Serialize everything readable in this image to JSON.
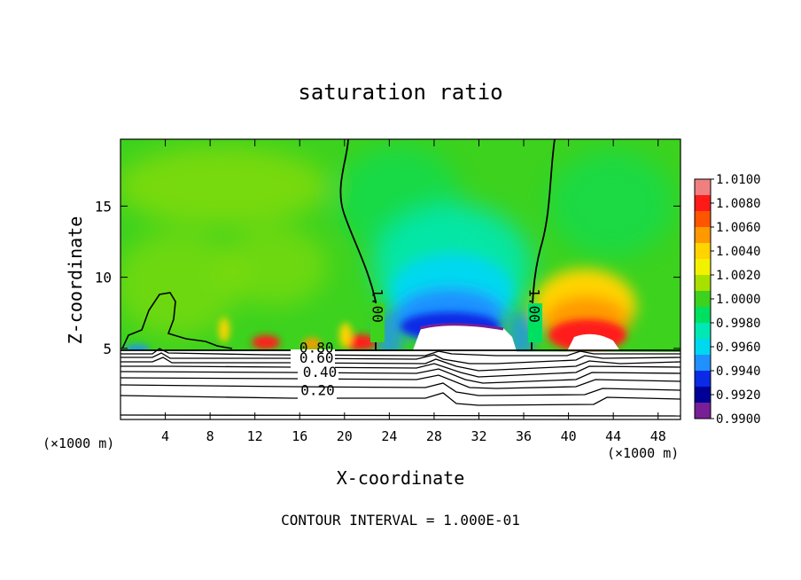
{
  "chart_data": {
    "type": "heatmap",
    "title": "saturation ratio",
    "xlabel": "X-coordinate",
    "ylabel": "Z-coordinate",
    "x_unit_label": "(×1000 m)",
    "y_unit_label": "(×1000 m)",
    "xlim": [
      0,
      50
    ],
    "ylim": [
      0,
      19.7
    ],
    "x_ticks": [
      4,
      8,
      12,
      16,
      20,
      24,
      28,
      32,
      36,
      40,
      44,
      48
    ],
    "x_tick_labels": [
      "4",
      "8",
      "12",
      "16",
      "20",
      "24",
      "28",
      "32",
      "36",
      "40",
      "44",
      "48"
    ],
    "y_ticks": [
      5,
      10,
      15
    ],
    "y_tick_labels": [
      "5",
      "10",
      "15"
    ],
    "footer": "CONTOUR INTERVAL = 1.000E-01",
    "colorbar": {
      "levels": [
        "1.0100",
        "1.0080",
        "1.0060",
        "1.0040",
        "1.0020",
        "1.0000",
        "0.9980",
        "0.9960",
        "0.9940",
        "0.9920",
        "0.9900"
      ],
      "colors": [
        "#f08080",
        "#ff1a1a",
        "#ff5500",
        "#ff9900",
        "#ffd400",
        "#f2f200",
        "#a8e000",
        "#3cd21e",
        "#00e060",
        "#00e8b4",
        "#00d8f0",
        "#1e90ff",
        "#0a2ae6",
        "#000096",
        "#781e96"
      ]
    },
    "contour_labels": [
      {
        "text": "1.00",
        "x": 22.5,
        "y": 8.0,
        "rotate": 90
      },
      {
        "text": "1.00",
        "x": 36.5,
        "y": 8.0,
        "rotate": 90
      },
      {
        "text": "0.80",
        "x": 17.5,
        "y": 4.7,
        "rotate": 0
      },
      {
        "text": "0.60",
        "x": 17.5,
        "y": 4.0,
        "rotate": 0
      },
      {
        "text": "0.40",
        "x": 17.8,
        "y": 3.0,
        "rotate": 0
      },
      {
        "text": "0.20",
        "x": 17.6,
        "y": 1.7,
        "rotate": 0
      }
    ]
  }
}
